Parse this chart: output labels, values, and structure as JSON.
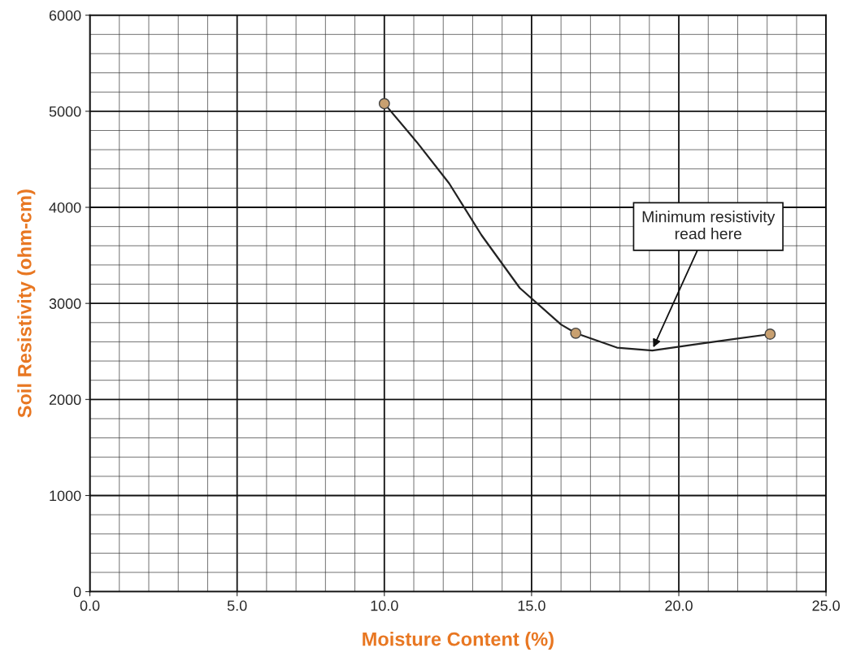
{
  "chart_data": {
    "type": "scatter",
    "xlabel": "Moisture Content (%)",
    "ylabel": "Soil Resistivity (ohm-cm)",
    "xlim": [
      0,
      25
    ],
    "ylim": [
      0,
      6000
    ],
    "xticks": [
      {
        "value": 0,
        "label": "0.0"
      },
      {
        "value": 5,
        "label": "5.0"
      },
      {
        "value": 10,
        "label": "10.0"
      },
      {
        "value": 15,
        "label": "15.0"
      },
      {
        "value": 20,
        "label": "20.0"
      },
      {
        "value": 25,
        "label": "25.0"
      }
    ],
    "yticks": [
      0,
      1000,
      2000,
      3000,
      4000,
      5000,
      6000
    ],
    "grid": true,
    "legend": false,
    "series": [
      {
        "type": "line",
        "color": "#222222",
        "marker": "none",
        "line_style": "solid",
        "x": [
          10.0,
          11.1,
          12.2,
          13.3,
          14.6,
          16.0,
          16.5,
          17.9,
          19.1,
          20.5,
          21.9,
          23.1
        ],
        "values": [
          5080,
          4680,
          4250,
          3710,
          3160,
          2780,
          2690,
          2540,
          2510,
          2570,
          2630,
          2680
        ]
      },
      {
        "color": "#c8a070",
        "marker": "circle",
        "x": [
          10.0,
          16.5,
          23.1
        ],
        "values": [
          5080,
          2690,
          2680
        ]
      }
    ],
    "annotations": [
      {
        "text": "Minimum resistivity\nread here",
        "x": 19.1,
        "y": 2520
      }
    ]
  }
}
